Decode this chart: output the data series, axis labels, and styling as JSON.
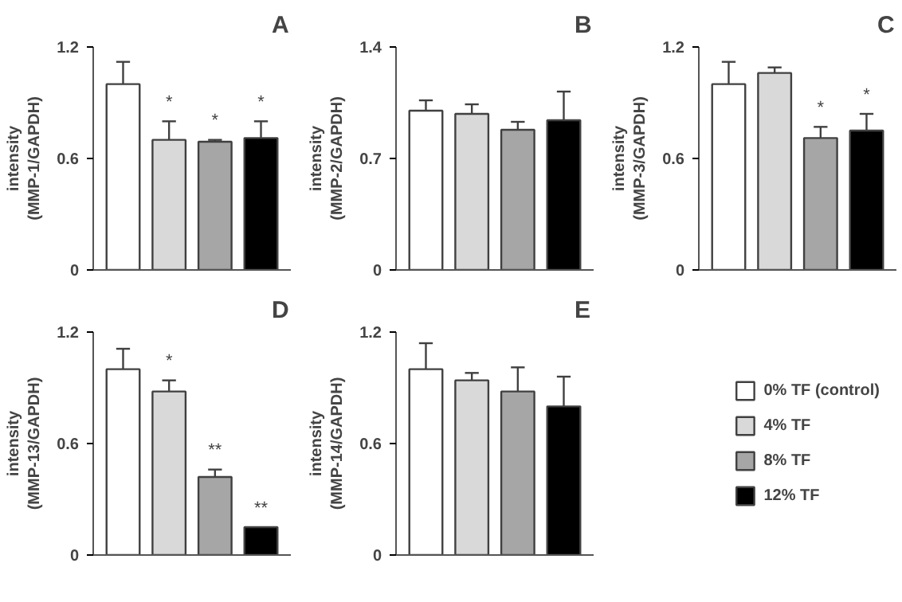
{
  "chart_data": [
    {
      "type": "bar",
      "title": "A",
      "ylabel": "intensity\n(MMP-1/GAPDH)",
      "categories": [
        null
      ],
      "ylim": [
        0,
        1.2
      ],
      "yticks": [
        0,
        0.6,
        1.2
      ],
      "tick_labels": "y",
      "grid": false,
      "series": [
        {
          "color": "#ffffff",
          "values": [
            1.0
          ],
          "errors": [
            [
              1.0,
              1.12
            ]
          ]
        },
        {
          "color": "#d9d9d9",
          "values": [
            0.7
          ],
          "errors": [
            [
              0.7,
              0.8
            ]
          ],
          "value_labels": [
            "*"
          ]
        },
        {
          "color": "#a6a6a6",
          "values": [
            0.69
          ],
          "errors": [
            [
              0.69,
              0.7
            ]
          ],
          "value_labels": [
            "*"
          ]
        },
        {
          "color": "#000000",
          "values": [
            0.71
          ],
          "errors": [
            [
              0.71,
              0.8
            ]
          ],
          "value_labels": [
            "*"
          ]
        }
      ]
    },
    {
      "type": "bar",
      "title": "B",
      "ylabel": "intensity\n(MMP-2/GAPDH)",
      "categories": [
        null
      ],
      "ylim": [
        0,
        1.4
      ],
      "yticks": [
        0,
        0.7,
        1.4
      ],
      "tick_labels": "y",
      "grid": false,
      "series": [
        {
          "color": "#ffffff",
          "values": [
            1.0
          ],
          "errors": [
            [
              1.0,
              1.065
            ]
          ]
        },
        {
          "color": "#d9d9d9",
          "values": [
            0.98
          ],
          "errors": [
            [
              0.98,
              1.04
            ]
          ]
        },
        {
          "color": "#a6a6a6",
          "values": [
            0.88
          ],
          "errors": [
            [
              0.88,
              0.93
            ]
          ]
        },
        {
          "color": "#000000",
          "values": [
            0.94
          ],
          "errors": [
            [
              0.94,
              1.12
            ]
          ]
        }
      ]
    },
    {
      "type": "bar",
      "title": "C",
      "ylabel": "intensity\n(MMP-3/GAPDH)",
      "categories": [
        null
      ],
      "ylim": [
        0,
        1.2
      ],
      "yticks": [
        0,
        0.6,
        1.2
      ],
      "tick_labels": "y",
      "grid": false,
      "series": [
        {
          "color": "#ffffff",
          "values": [
            1.0
          ],
          "errors": [
            [
              1.0,
              1.12
            ]
          ]
        },
        {
          "color": "#d9d9d9",
          "values": [
            1.06
          ],
          "errors": [
            [
              1.06,
              1.09
            ]
          ]
        },
        {
          "color": "#a6a6a6",
          "values": [
            0.71
          ],
          "errors": [
            [
              0.71,
              0.77
            ]
          ],
          "value_labels": [
            "*"
          ]
        },
        {
          "color": "#000000",
          "values": [
            0.75
          ],
          "errors": [
            [
              0.75,
              0.84
            ]
          ],
          "value_labels": [
            "*"
          ]
        }
      ]
    },
    {
      "type": "bar",
      "title": "D",
      "ylabel": "intensity\n(MMP-13/GAPDH)",
      "categories": [
        null
      ],
      "ylim": [
        0,
        1.2
      ],
      "yticks": [
        0,
        0.6,
        1.2
      ],
      "tick_labels": "y",
      "grid": false,
      "series": [
        {
          "color": "#ffffff",
          "values": [
            1.0
          ],
          "errors": [
            [
              1.0,
              1.11
            ]
          ]
        },
        {
          "color": "#d9d9d9",
          "values": [
            0.88
          ],
          "errors": [
            [
              0.88,
              0.94
            ]
          ],
          "value_labels": [
            "*"
          ]
        },
        {
          "color": "#a6a6a6",
          "values": [
            0.42
          ],
          "errors": [
            [
              0.42,
              0.46
            ]
          ],
          "value_labels": [
            "**"
          ]
        },
        {
          "color": "#000000",
          "values": [
            0.15
          ],
          "errors": [
            null
          ],
          "value_labels": [
            "**"
          ]
        }
      ]
    },
    {
      "type": "bar",
      "title": "E",
      "ylabel": "intensity\n(MMP-14/GAPDH)",
      "categories": [
        null
      ],
      "ylim": [
        0,
        1.2
      ],
      "yticks": [
        0,
        0.6,
        1.2
      ],
      "tick_labels": "y",
      "grid": false,
      "legend": "right",
      "series": [
        {
          "name": "0% TF (control)",
          "color": "#ffffff",
          "values": [
            1.0
          ],
          "errors": [
            [
              1.0,
              1.14
            ]
          ]
        },
        {
          "name": "4% TF",
          "color": "#d9d9d9",
          "values": [
            0.94
          ],
          "errors": [
            [
              0.94,
              0.98
            ]
          ]
        },
        {
          "name": "8% TF",
          "color": "#a6a6a6",
          "values": [
            0.88
          ],
          "errors": [
            [
              0.88,
              1.01
            ]
          ]
        },
        {
          "name": "12% TF",
          "color": "#000000",
          "values": [
            0.8
          ],
          "errors": [
            [
              0.8,
              0.96
            ]
          ]
        }
      ]
    }
  ]
}
